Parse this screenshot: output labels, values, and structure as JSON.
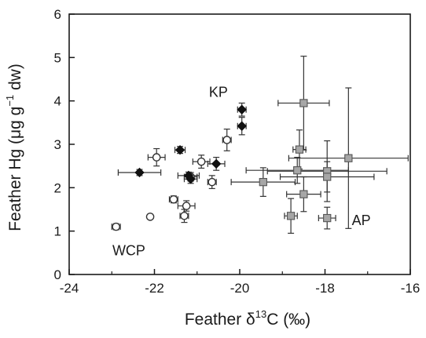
{
  "chart_data": {
    "type": "scatter",
    "xlabel": {
      "prefix": "Feather δ",
      "sup": "13",
      "suffix": "C (‰)"
    },
    "ylabel": {
      "prefix": "Feather Hg (μg g",
      "sup": "−1",
      "suffix": " dw)"
    },
    "xlim": [
      -24,
      -16
    ],
    "ylim": [
      0,
      6
    ],
    "xticks": [
      "-24",
      "-22",
      "-20",
      "-18",
      "-16"
    ],
    "yticks": [
      "0",
      "1",
      "2",
      "3",
      "4",
      "5",
      "6"
    ],
    "grid": false,
    "legend": "none",
    "colors": {
      "WCP": "#ffffff",
      "KP": "#111111",
      "AP": "#a6a6a6",
      "axis": "#1a1a1a",
      "errorbar": "#333333"
    },
    "annotations": [
      {
        "text": "KP",
        "x": -20.5,
        "y": 4.2
      },
      {
        "text": "WCP",
        "x": -22.6,
        "y": 0.55
      },
      {
        "text": "AP",
        "x": -17.15,
        "y": 1.25
      }
    ],
    "series": [
      {
        "group": "WCP",
        "marker": "circle-open",
        "points": [
          {
            "x": -22.9,
            "y": 1.1,
            "xerr": 0.1,
            "yerr": 0.07
          },
          {
            "x": -22.1,
            "y": 1.33,
            "xerr": 0.05,
            "yerr": 0.05
          },
          {
            "x": -21.95,
            "y": 2.7,
            "xerr": 0.2,
            "yerr": 0.2
          },
          {
            "x": -21.55,
            "y": 1.73,
            "xerr": 0.1,
            "yerr": 0.08
          },
          {
            "x": -21.3,
            "y": 1.35,
            "xerr": 0.1,
            "yerr": 0.15
          },
          {
            "x": -21.25,
            "y": 1.58,
            "xerr": 0.2,
            "yerr": 0.12
          },
          {
            "x": -21.15,
            "y": 2.25,
            "xerr": 0.15,
            "yerr": 0.1
          },
          {
            "x": -20.9,
            "y": 2.6,
            "xerr": 0.2,
            "yerr": 0.15
          },
          {
            "x": -20.65,
            "y": 2.13,
            "xerr": 0.1,
            "yerr": 0.15
          },
          {
            "x": -20.3,
            "y": 3.1,
            "xerr": 0.1,
            "yerr": 0.25
          }
        ]
      },
      {
        "group": "KP",
        "marker": "diamond-filled",
        "points": [
          {
            "x": -22.35,
            "y": 2.35,
            "xerr": 0.5,
            "yerr": 0.07
          },
          {
            "x": -21.4,
            "y": 2.87,
            "xerr": 0.12,
            "yerr": 0.08
          },
          {
            "x": -21.2,
            "y": 2.28,
            "xerr": 0.25,
            "yerr": 0.08
          },
          {
            "x": -21.15,
            "y": 2.2,
            "xerr": 0.15,
            "yerr": 0.1
          },
          {
            "x": -20.55,
            "y": 2.55,
            "xerr": 0.2,
            "yerr": 0.15
          },
          {
            "x": -19.95,
            "y": 3.8,
            "xerr": 0.1,
            "yerr": 0.15
          },
          {
            "x": -19.95,
            "y": 3.42,
            "xerr": 0.1,
            "yerr": 0.2
          }
        ]
      },
      {
        "group": "AP",
        "marker": "square-gray",
        "points": [
          {
            "x": -18.5,
            "y": 3.95,
            "xerr": 0.6,
            "yerr": 1.08
          },
          {
            "x": -18.6,
            "y": 2.88,
            "xerr": 0.15,
            "yerr": 0.45
          },
          {
            "x": -18.65,
            "y": 2.4,
            "xerr": 1.2,
            "yerr": 0.3
          },
          {
            "x": -19.45,
            "y": 2.13,
            "xerr": 0.75,
            "yerr": 0.33
          },
          {
            "x": -18.5,
            "y": 1.85,
            "xerr": 0.4,
            "yerr": 0.4
          },
          {
            "x": -18.8,
            "y": 1.35,
            "xerr": 0.15,
            "yerr": 0.4
          },
          {
            "x": -17.95,
            "y": 2.38,
            "xerr": 1.4,
            "yerr": 0.7
          },
          {
            "x": -17.95,
            "y": 2.25,
            "xerr": 1.1,
            "yerr": 0.35
          },
          {
            "x": -17.95,
            "y": 1.3,
            "xerr": 0.2,
            "yerr": 0.25
          },
          {
            "x": -17.45,
            "y": 2.68,
            "xerr": 1.4,
            "yerr": 1.62
          }
        ]
      }
    ]
  }
}
